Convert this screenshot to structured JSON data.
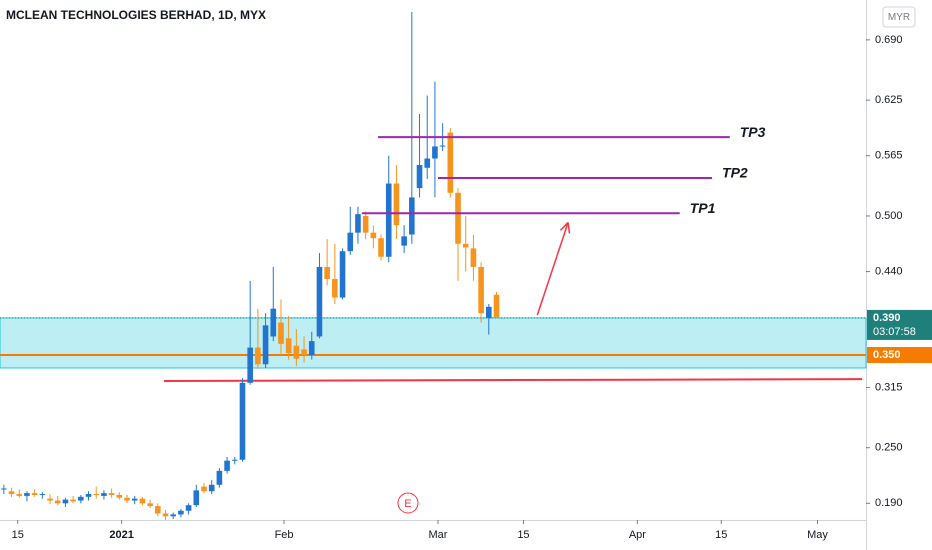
{
  "chart_data": {
    "type": "candlestick",
    "title": "MCLEAN TECHNOLOGIES BERHAD, 1D, MYX",
    "currency": "MYR",
    "up_color": "#2275cf",
    "down_color": "#f7941d",
    "open": [
      0.205,
      0.203,
      0.2,
      0.198,
      0.201,
      0.199,
      0.195,
      0.193,
      0.19,
      0.194,
      0.193,
      0.197,
      0.2,
      0.198,
      0.201,
      0.199,
      0.196,
      0.193,
      0.195,
      0.19,
      0.187,
      0.179,
      0.176,
      0.178,
      0.182,
      0.188,
      0.208,
      0.203,
      0.21,
      0.225,
      0.236,
      0.237,
      0.32,
      0.358,
      0.34,
      0.37,
      0.385,
      0.368,
      0.36,
      0.356,
      0.35,
      0.37,
      0.445,
      0.432,
      0.412,
      0.462,
      0.482,
      0.5,
      0.482,
      0.476,
      0.456,
      0.535,
      0.468,
      0.48,
      0.53,
      0.552,
      0.562,
      0.575,
      0.59,
      0.525,
      0.47,
      0.465,
      0.445,
      0.39,
      0.415
    ],
    "high": [
      0.21,
      0.207,
      0.205,
      0.203,
      0.205,
      0.202,
      0.2,
      0.198,
      0.196,
      0.198,
      0.199,
      0.203,
      0.208,
      0.204,
      0.206,
      0.202,
      0.199,
      0.198,
      0.197,
      0.194,
      0.19,
      0.183,
      0.18,
      0.184,
      0.19,
      0.21,
      0.212,
      0.215,
      0.228,
      0.24,
      0.24,
      0.325,
      0.43,
      0.4,
      0.395,
      0.445,
      0.41,
      0.392,
      0.378,
      0.37,
      0.375,
      0.46,
      0.475,
      0.47,
      0.465,
      0.51,
      0.51,
      0.505,
      0.49,
      0.48,
      0.565,
      0.555,
      0.49,
      0.72,
      0.61,
      0.63,
      0.645,
      0.6,
      0.595,
      0.53,
      0.5,
      0.48,
      0.45,
      0.405,
      0.418
    ],
    "low": [
      0.2,
      0.197,
      0.196,
      0.192,
      0.197,
      0.195,
      0.189,
      0.188,
      0.186,
      0.19,
      0.19,
      0.193,
      0.195,
      0.194,
      0.196,
      0.194,
      0.19,
      0.189,
      0.188,
      0.185,
      0.176,
      0.172,
      0.173,
      0.175,
      0.178,
      0.186,
      0.201,
      0.2,
      0.207,
      0.222,
      0.232,
      0.235,
      0.318,
      0.335,
      0.336,
      0.365,
      0.35,
      0.345,
      0.338,
      0.342,
      0.345,
      0.368,
      0.425,
      0.405,
      0.41,
      0.458,
      0.47,
      0.475,
      0.465,
      0.452,
      0.45,
      0.475,
      0.46,
      0.47,
      0.52,
      0.54,
      0.52,
      0.57,
      0.52,
      0.43,
      0.44,
      0.43,
      0.385,
      0.372,
      0.39
    ],
    "close": [
      0.206,
      0.2,
      0.198,
      0.201,
      0.199,
      0.2,
      0.193,
      0.19,
      0.194,
      0.192,
      0.197,
      0.2,
      0.199,
      0.201,
      0.199,
      0.196,
      0.193,
      0.195,
      0.19,
      0.187,
      0.179,
      0.176,
      0.178,
      0.182,
      0.188,
      0.204,
      0.203,
      0.21,
      0.225,
      0.236,
      0.237,
      0.32,
      0.358,
      0.34,
      0.382,
      0.4,
      0.362,
      0.352,
      0.346,
      0.35,
      0.365,
      0.445,
      0.432,
      0.412,
      0.462,
      0.482,
      0.502,
      0.482,
      0.476,
      0.456,
      0.535,
      0.49,
      0.478,
      0.52,
      0.555,
      0.562,
      0.575,
      0.576,
      0.525,
      0.47,
      0.466,
      0.445,
      0.395,
      0.402,
      0.39
    ],
    "xlim": [
      -0.5,
      112
    ],
    "xticks": [
      {
        "value": 1.8,
        "label": "15"
      },
      {
        "value": 15.3,
        "label": "2021"
      },
      {
        "value": 36.4,
        "label": "Feb"
      },
      {
        "value": 56.4,
        "label": "Mar"
      },
      {
        "value": 67.5,
        "label": "15"
      },
      {
        "value": 82.3,
        "label": "Apr"
      },
      {
        "value": 93.2,
        "label": "15"
      },
      {
        "value": 105.7,
        "label": "May"
      }
    ],
    "ylim": [
      0.172,
      0.733
    ],
    "yticks": [
      {
        "value": 0.69,
        "label": "0.690"
      },
      {
        "value": 0.625,
        "label": "0.625"
      },
      {
        "value": 0.565,
        "label": "0.565"
      },
      {
        "value": 0.5,
        "label": "0.500"
      },
      {
        "value": 0.44,
        "label": "0.440"
      },
      {
        "value": 0.315,
        "label": "0.315"
      },
      {
        "value": 0.25,
        "label": "0.250"
      },
      {
        "value": 0.19,
        "label": "0.190"
      }
    ],
    "last_price": {
      "value": 0.39,
      "label": "0.390",
      "color": "#1f7f7a"
    },
    "countdown": "03:07:58",
    "level": {
      "value": 0.35,
      "label": "0.350",
      "color": "#f57c00"
    },
    "zone": {
      "low": 0.336,
      "high": 0.39,
      "color": "#26c6da"
    },
    "support_line": {
      "x": [
        20.8,
        111.5
      ],
      "y": [
        0.322,
        0.324
      ],
      "color": "#f23645"
    },
    "targets": [
      {
        "label": "TP1",
        "x": [
          46.5,
          87.8
        ],
        "y": [
          0.503,
          0.503
        ],
        "color": "#9c27b0"
      },
      {
        "label": "TP2",
        "x": [
          56.4,
          92
        ],
        "y": [
          0.541,
          0.541
        ],
        "color": "#9c27b0"
      },
      {
        "label": "TP3",
        "x": [
          48.6,
          94.3
        ],
        "y": [
          0.585,
          0.585
        ],
        "color": "#9c27b0"
      }
    ],
    "arrow": {
      "x": [
        69.3,
        73.3
      ],
      "y": [
        0.393,
        0.493
      ],
      "color": "#f23645"
    },
    "event": {
      "label": "E",
      "x": 52.5
    }
  }
}
